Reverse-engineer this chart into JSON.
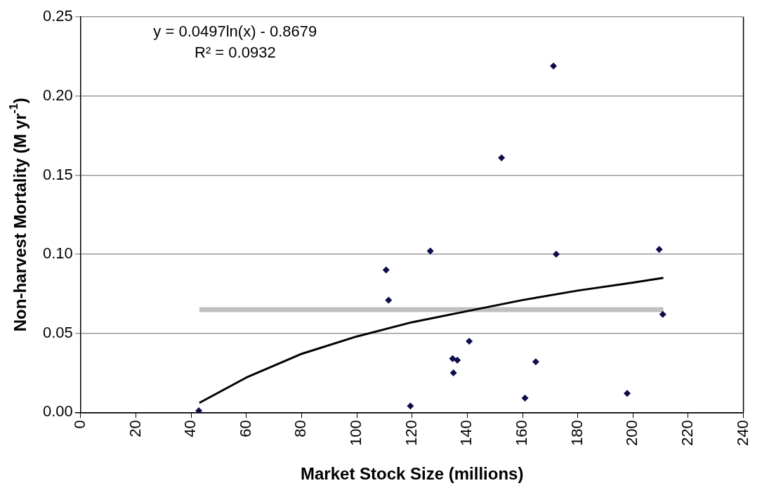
{
  "chart_data": {
    "type": "scatter",
    "xlabel": "Market Stock Size (millions)",
    "ylabel": "Non-harvest Mortality (M yr$^{-1}$)",
    "annotations": [
      "y = 0.0497ln(x) - 0.8679",
      "R² = 0.0932"
    ],
    "xlim": [
      0,
      240
    ],
    "xticks": [
      0,
      20,
      40,
      60,
      80,
      100,
      120,
      140,
      160,
      180,
      200,
      220,
      240
    ],
    "ylim": [
      0,
      0.25
    ],
    "yticks": [
      {
        "value": 0,
        "label": "0.00"
      },
      {
        "value": 0.05,
        "label": "0.05"
      },
      {
        "value": 0.1,
        "label": "0.10"
      },
      {
        "value": 0.15,
        "label": "0.15"
      },
      {
        "value": 0.2,
        "label": "0.20"
      },
      {
        "value": 0.25,
        "label": "0.25"
      }
    ],
    "grid": "y",
    "marker": "diamond",
    "legend": false,
    "series": [
      {
        "type": "scatter",
        "color": "#0d0d4d",
        "x": [
          42.8,
          110.6,
          111.5,
          119.4,
          126.6,
          134.7,
          136.4,
          135,
          140.7,
          152.4,
          160.9,
          164.8,
          171.2,
          172.2,
          197.9,
          209.5,
          210.8
        ],
        "values": [
          0.001,
          0.09,
          0.071,
          0.004,
          0.102,
          0.034,
          0.033,
          0.025,
          0.045,
          0.161,
          0.009,
          0.032,
          0.219,
          0.1,
          0.012,
          0.103,
          0.062
        ]
      },
      {
        "type": "line",
        "color": "#000000",
        "marker": "none",
        "x": [
          43,
          60,
          80,
          100,
          120,
          140,
          160,
          180,
          200,
          211
        ],
        "values": [
          0.006,
          0.022,
          0.037,
          0.048,
          0.057,
          0.064,
          0.071,
          0.077,
          0.082,
          0.085
        ]
      },
      {
        "type": "line",
        "color": "#c0c0c0",
        "marker": "none",
        "x": [
          43,
          211
        ],
        "values": [
          0.065,
          0.065
        ]
      }
    ]
  }
}
